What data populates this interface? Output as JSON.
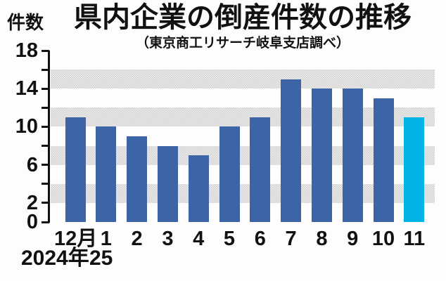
{
  "chart_data": {
    "type": "bar",
    "title": "県内企業の倒産件数の推移",
    "subtitle": "（東京商工リサーチ岐阜支店調べ）",
    "ylabel": "件数",
    "xlabel": "",
    "categories": [
      "12月",
      "1",
      "2",
      "3",
      "4",
      "5",
      "6",
      "7",
      "8",
      "9",
      "10",
      "11"
    ],
    "values": [
      11,
      10,
      9,
      8,
      7,
      10,
      11,
      15,
      14,
      14,
      13,
      11
    ],
    "highlight_index": 11,
    "x_period_labels": {
      "start_year": "2024年",
      "next_year": "25"
    },
    "ylim": [
      0,
      18
    ],
    "ytick_step": 2,
    "ytick_labeled_values": [
      18,
      14,
      10,
      6,
      2,
      0
    ],
    "grid_bands": [
      [
        2,
        4
      ],
      [
        6,
        8
      ],
      [
        10,
        12
      ],
      [
        14,
        16
      ]
    ],
    "legend_position": "none",
    "grid": "horizontal-banded",
    "colors": {
      "bar": "#3c64a6",
      "highlight_bar": "#00b4e8",
      "band_gray": "#dcdcdc",
      "axis": "#111111",
      "text": "#111111"
    }
  }
}
